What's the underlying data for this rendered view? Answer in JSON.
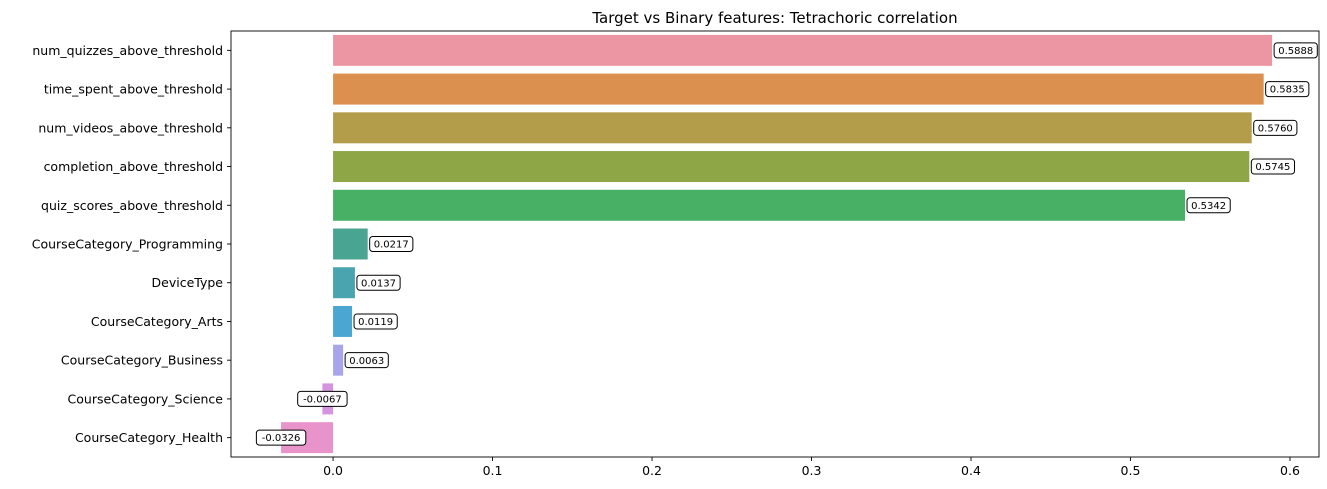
{
  "chart_data": {
    "type": "bar",
    "orientation": "horizontal",
    "title": "Target vs Binary features: Tetrachoric correlation",
    "xlabel": "",
    "ylabel": "",
    "xlim": [
      -0.064,
      0.6182
    ],
    "xticks": [
      0.0,
      0.1,
      0.2,
      0.3,
      0.4,
      0.5,
      0.6
    ],
    "xtick_labels": [
      "0.0",
      "0.1",
      "0.2",
      "0.3",
      "0.4",
      "0.5",
      "0.6"
    ],
    "grid": false,
    "legend": "none",
    "categories": [
      "num_quizzes_above_threshold",
      "time_spent_above_threshold",
      "num_videos_above_threshold",
      "completion_above_threshold",
      "quiz_scores_above_threshold",
      "CourseCategory_Programming",
      "DeviceType",
      "CourseCategory_Arts",
      "CourseCategory_Business",
      "CourseCategory_Science",
      "CourseCategory_Health"
    ],
    "values": [
      0.5888,
      0.5835,
      0.576,
      0.5745,
      0.5342,
      0.0217,
      0.0137,
      0.0119,
      0.0063,
      -0.0067,
      -0.0326
    ],
    "value_labels": [
      "0.5888",
      "0.5835",
      "0.5760",
      "0.5745",
      "0.5342",
      "0.0217",
      "0.0137",
      "0.0119",
      "0.0063",
      "-0.0067",
      "-0.0326"
    ],
    "colors": [
      "#ed96a3",
      "#dc904f",
      "#b39d4a",
      "#8ea646",
      "#48b064",
      "#4aa492",
      "#4aa4af",
      "#4ba7d1",
      "#aaa4ea",
      "#d594de",
      "#e894ca"
    ]
  }
}
